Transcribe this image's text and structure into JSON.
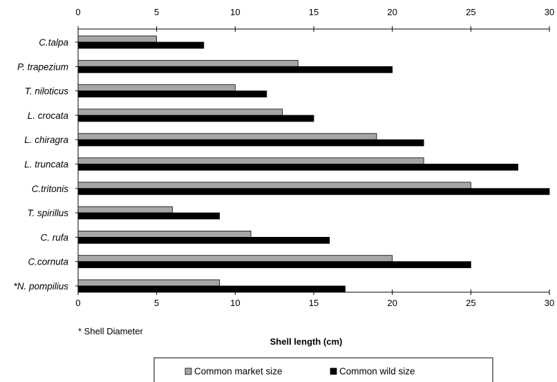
{
  "chart_data": {
    "type": "bar",
    "orientation": "horizontal",
    "categories": [
      "C.talpa",
      "P. trapezium",
      "T. niloticus",
      "L. crocata",
      "L. chiragra",
      "L. truncata",
      "C.tritonis",
      "T. spirillus",
      "C. rufa",
      "C.cornuta",
      "*N. pompilius"
    ],
    "series": [
      {
        "name": "Common market size",
        "color": "#a6a6a6",
        "values": [
          5,
          14,
          10,
          13,
          19,
          22,
          25,
          6,
          11,
          20,
          9
        ]
      },
      {
        "name": "Common wild size",
        "color": "#000000",
        "values": [
          8,
          20,
          12,
          15,
          22,
          28,
          30,
          9,
          16,
          25,
          17
        ]
      }
    ],
    "xlabel": "Shell length (cm)",
    "xlim": [
      0,
      30
    ],
    "xticks": [
      0,
      5,
      10,
      15,
      20,
      25,
      30
    ],
    "footnote": "* Shell Diameter",
    "grid": false,
    "legend_position": "bottom",
    "axis_top_and_bottom": true
  }
}
